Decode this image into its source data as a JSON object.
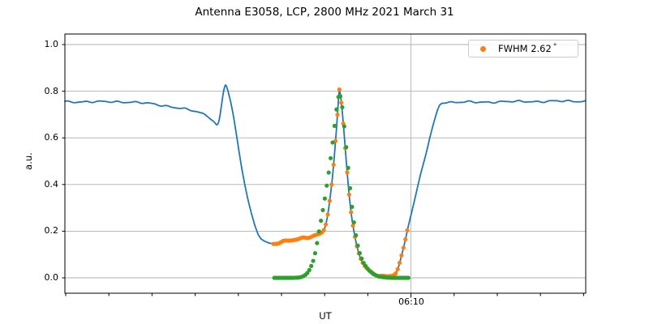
{
  "title": "Antenna E3058, LCP, 2800 MHz 2021 March 31",
  "axes": {
    "xlabel": "UT",
    "ylabel": "a.u.",
    "y_tick_labels": [
      "0.0",
      "0.2",
      "0.4",
      "0.6",
      "0.8",
      "1.0"
    ],
    "y_tick_values": [
      0.0,
      0.2,
      0.4,
      0.6,
      0.8,
      1.0
    ],
    "x_major_tick": {
      "label": "06:10",
      "minute": 10
    },
    "x_minor_tick_minutes": [
      2,
      3,
      4,
      5,
      6,
      7,
      8,
      9,
      10,
      11,
      12,
      13,
      14
    ],
    "x_unit": "minutes after 06:00 UT",
    "visible_time_range": "about 06:02 to 06:14 UT",
    "grid": "horizontal lines at every 0.2 a.u.; one vertical line at 06:10"
  },
  "legend": {
    "label": "FWHM 2.62",
    "degree_symbol": "°",
    "marker": "orange-dot",
    "position": "upper right"
  },
  "colors": {
    "blue_line": "#1f77b4",
    "orange_dots": "#ff7f0e",
    "green_dots": "#2ca02c",
    "grid": "#b0b0b0",
    "spine": "#000000",
    "background": "#ffffff"
  },
  "chart_data": {
    "type": "line+scatter",
    "title": "Antenna E3058, LCP, 2800 MHz 2021 March 31",
    "xlabel": "UT",
    "ylabel": "a.u.",
    "ylim": [
      -0.066,
      1.045
    ],
    "xlim_minutes": [
      1.98,
      14.05
    ],
    "fwhm_deg": 2.62,
    "key_values": {
      "left_plateau_au": 0.755,
      "pre_dip_au": 0.654,
      "pre_dip_time": "06:05.5",
      "cal_spike_au": 0.83,
      "cal_spike_time": "06:05.7",
      "scan_pedestal_au": "0.145 to 0.195",
      "gaussian_peak_au": 0.81,
      "gaussian_peak_time": "06:08.3",
      "right_minimum_au": 0.005,
      "right_plateau_au": 0.755
    },
    "series": [
      {
        "name": "drift-scan record",
        "style": "solid line",
        "color": "#1f77b4",
        "points": [
          [
            1.981,
            0.755
          ],
          [
            2.357,
            0.755
          ],
          [
            2.733,
            0.754
          ],
          [
            3.109,
            0.755
          ],
          [
            3.485,
            0.754
          ],
          [
            3.767,
            0.75
          ],
          [
            4.049,
            0.744
          ],
          [
            4.331,
            0.737
          ],
          [
            4.613,
            0.729
          ],
          [
            4.895,
            0.718
          ],
          [
            5.177,
            0.703
          ],
          [
            5.327,
            0.69
          ],
          [
            5.421,
            0.673
          ],
          [
            5.496,
            0.654
          ],
          [
            5.534,
            0.66
          ],
          [
            5.571,
            0.69
          ],
          [
            5.609,
            0.74
          ],
          [
            5.647,
            0.79
          ],
          [
            5.675,
            0.815
          ],
          [
            5.697,
            0.829
          ],
          [
            5.722,
            0.825
          ],
          [
            5.759,
            0.805
          ],
          [
            5.816,
            0.76
          ],
          [
            5.872,
            0.705
          ],
          [
            5.929,
            0.64
          ],
          [
            6.004,
            0.555
          ],
          [
            6.079,
            0.47
          ],
          [
            6.154,
            0.395
          ],
          [
            6.229,
            0.33
          ],
          [
            6.305,
            0.272
          ],
          [
            6.38,
            0.225
          ],
          [
            6.455,
            0.192
          ],
          [
            6.53,
            0.17
          ],
          [
            6.605,
            0.157
          ],
          [
            6.699,
            0.149
          ],
          [
            6.812,
            0.145
          ],
          [
            6.962,
            0.15
          ],
          [
            7.15,
            0.158
          ],
          [
            7.338,
            0.165
          ],
          [
            7.526,
            0.172
          ],
          [
            7.677,
            0.178
          ],
          [
            7.808,
            0.184
          ],
          [
            7.902,
            0.188
          ],
          [
            7.959,
            0.195
          ],
          [
            7.996,
            0.21
          ],
          [
            8.034,
            0.235
          ],
          [
            8.071,
            0.272
          ],
          [
            8.109,
            0.318
          ],
          [
            8.147,
            0.372
          ],
          [
            8.184,
            0.432
          ],
          [
            8.222,
            0.512
          ],
          [
            8.259,
            0.6
          ],
          [
            8.288,
            0.672
          ],
          [
            8.316,
            0.752
          ],
          [
            8.335,
            0.812
          ],
          [
            8.353,
            0.8
          ],
          [
            8.382,
            0.76
          ],
          [
            8.41,
            0.712
          ],
          [
            8.447,
            0.63
          ],
          [
            8.485,
            0.54
          ],
          [
            8.523,
            0.452
          ],
          [
            8.56,
            0.37
          ],
          [
            8.598,
            0.3
          ],
          [
            8.635,
            0.245
          ],
          [
            8.692,
            0.185
          ],
          [
            8.748,
            0.138
          ],
          [
            8.805,
            0.1
          ],
          [
            8.861,
            0.072
          ],
          [
            8.936,
            0.048
          ],
          [
            9.011,
            0.032
          ],
          [
            9.086,
            0.021
          ],
          [
            9.162,
            0.014
          ],
          [
            9.237,
            0.009
          ],
          [
            9.312,
            0.006
          ],
          [
            9.387,
            0.005
          ],
          [
            9.462,
            0.006
          ],
          [
            9.538,
            0.009
          ],
          [
            9.594,
            0.014
          ],
          [
            9.65,
            0.024
          ],
          [
            9.707,
            0.045
          ],
          [
            9.763,
            0.08
          ],
          [
            9.82,
            0.122
          ],
          [
            9.876,
            0.17
          ],
          [
            9.932,
            0.22
          ],
          [
            9.989,
            0.262
          ],
          [
            10.064,
            0.318
          ],
          [
            10.158,
            0.39
          ],
          [
            10.252,
            0.462
          ],
          [
            10.346,
            0.532
          ],
          [
            10.44,
            0.602
          ],
          [
            10.534,
            0.668
          ],
          [
            10.609,
            0.716
          ],
          [
            10.665,
            0.742
          ],
          [
            10.722,
            0.752
          ],
          [
            10.778,
            0.754
          ],
          [
            11.004,
            0.752
          ],
          [
            11.286,
            0.753
          ],
          [
            11.568,
            0.753
          ],
          [
            11.85,
            0.754
          ],
          [
            12.132,
            0.755
          ],
          [
            12.414,
            0.755
          ],
          [
            12.696,
            0.756
          ],
          [
            12.977,
            0.756
          ],
          [
            13.259,
            0.757
          ],
          [
            13.541,
            0.757
          ],
          [
            13.823,
            0.757
          ],
          [
            14.049,
            0.758
          ]
        ]
      },
      {
        "name": "scan samples (FWHM 2.62 deg)",
        "style": "dots",
        "color": "#ff7f0e",
        "sampled_from": "drift-scan record",
        "t_start": 6.812,
        "t_end": 9.945,
        "t_step": 0.045
      },
      {
        "name": "background-subtracted fit",
        "style": "dots",
        "color": "#2ca02c",
        "t_step": 0.045,
        "points": [
          [
            6.812,
            0.0
          ],
          [
            7.056,
            0.0
          ],
          [
            7.244,
            0.0
          ],
          [
            7.395,
            0.001
          ],
          [
            7.47,
            0.004
          ],
          [
            7.545,
            0.011
          ],
          [
            7.62,
            0.025
          ],
          [
            7.677,
            0.045
          ],
          [
            7.733,
            0.072
          ],
          [
            7.771,
            0.098
          ],
          [
            7.808,
            0.132
          ],
          [
            7.846,
            0.172
          ],
          [
            7.883,
            0.215
          ],
          [
            7.94,
            0.27
          ],
          [
            7.996,
            0.33
          ],
          [
            8.053,
            0.4
          ],
          [
            8.109,
            0.47
          ],
          [
            8.165,
            0.55
          ],
          [
            8.222,
            0.64
          ],
          [
            8.259,
            0.7
          ],
          [
            8.297,
            0.755
          ],
          [
            8.335,
            0.79
          ],
          [
            8.372,
            0.775
          ],
          [
            8.41,
            0.73
          ],
          [
            8.447,
            0.663
          ],
          [
            8.504,
            0.55
          ],
          [
            8.56,
            0.44
          ],
          [
            8.617,
            0.33
          ],
          [
            8.673,
            0.245
          ],
          [
            8.73,
            0.175
          ],
          [
            8.786,
            0.122
          ],
          [
            8.842,
            0.09
          ],
          [
            8.899,
            0.065
          ],
          [
            8.974,
            0.044
          ],
          [
            9.049,
            0.028
          ],
          [
            9.124,
            0.017
          ],
          [
            9.199,
            0.01
          ],
          [
            9.275,
            0.005
          ],
          [
            9.35,
            0.003
          ],
          [
            9.462,
            0.001
          ],
          [
            9.575,
            0.0
          ],
          [
            9.97,
            0.0
          ]
        ]
      }
    ]
  }
}
